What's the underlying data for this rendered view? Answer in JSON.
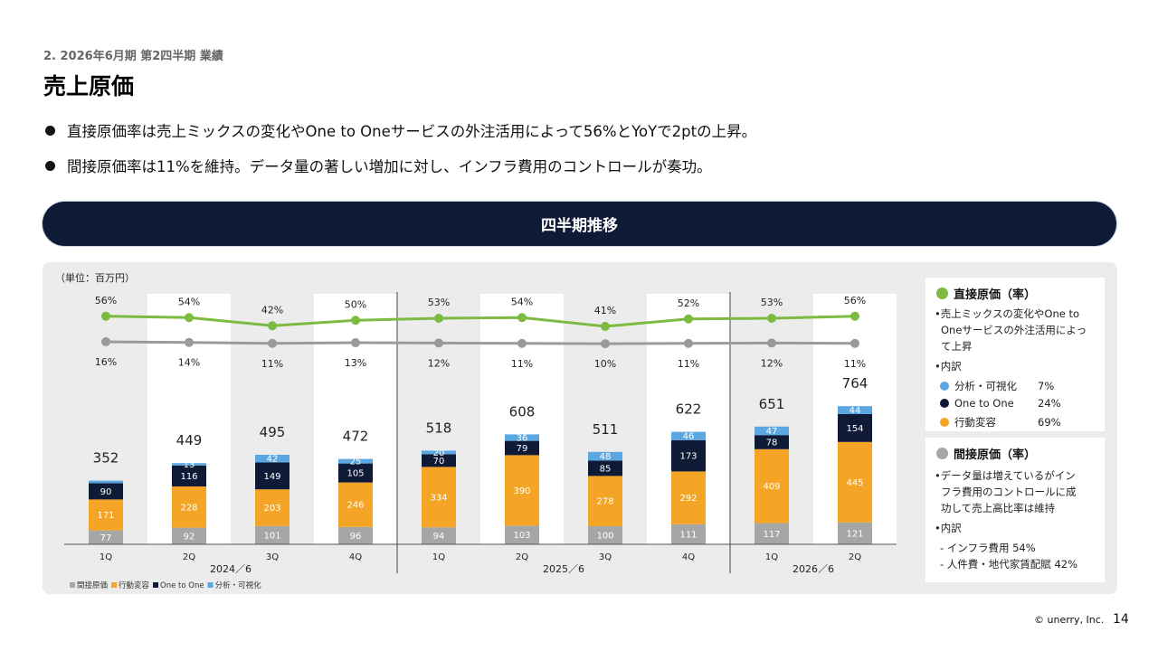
{
  "header": {
    "subtitle": "2. 2026年6月期 第2四半期 業績",
    "title": "売上原価"
  },
  "bullets": [
    "直接原価率は売上ミックスの変化やOne to Oneサービスの外注活用によって56%とYoYで2ptの上昇。",
    "間接原価率は11%を維持。データ量の著しい増加に対し、インフラ費用のコントロールが奏功。"
  ],
  "banner": "四半期推移",
  "unit_label": "（単位：百万円）",
  "colors": {
    "indirect": "#a6a6a6",
    "behavior": "#f4a526",
    "one_to_one": "#0f1a36",
    "analytics": "#5ba7e2",
    "direct_line": "#7cba41",
    "indirect_line": "#9a9a9a"
  },
  "chart_data": {
    "type": "bar",
    "stacked": true,
    "categories": [
      "1Q",
      "2Q",
      "3Q",
      "4Q",
      "1Q",
      "2Q",
      "3Q",
      "4Q",
      "1Q",
      "2Q"
    ],
    "groups": [
      {
        "label": "2024／6",
        "count": 4
      },
      {
        "label": "2025／6",
        "count": 4
      },
      {
        "label": "2026／6",
        "count": 2
      }
    ],
    "series": [
      {
        "key": "indirect",
        "name": "間接原価",
        "values": [
          77,
          92,
          101,
          96,
          94,
          103,
          100,
          111,
          117,
          121
        ],
        "labels": [
          "77",
          "92",
          "101",
          "96",
          "94",
          "103",
          "100",
          "111",
          "117",
          "121"
        ]
      },
      {
        "key": "behavior",
        "name": "行動変容",
        "values": [
          171,
          228,
          203,
          246,
          334,
          390,
          278,
          292,
          409,
          445
        ],
        "labels": [
          "171",
          "228",
          "203",
          "246",
          "334",
          "390",
          "278",
          "292",
          "409",
          "445"
        ]
      },
      {
        "key": "one_to_one",
        "name": "One to One",
        "values": [
          90,
          116,
          149,
          105,
          70,
          79,
          85,
          173,
          78,
          154
        ],
        "labels": [
          "90",
          "116",
          "149",
          "105",
          "70",
          "79",
          "85",
          "173",
          "78",
          "154"
        ]
      },
      {
        "key": "analytics",
        "name": "分析・可視化",
        "values": [
          14,
          13,
          42,
          25,
          20,
          36,
          48,
          46,
          47,
          44
        ],
        "labels": [
          "",
          "13",
          "42",
          "25",
          "20",
          "36",
          "48",
          "46",
          "47",
          "44"
        ]
      }
    ],
    "totals": [
      "352",
      "449",
      "495",
      "472",
      "518",
      "608",
      "511",
      "622",
      "651",
      "764"
    ],
    "lines": [
      {
        "key": "direct_line",
        "name": "直接原価率",
        "values": [
          56,
          54,
          42,
          50,
          53,
          54,
          41,
          52,
          53,
          56
        ],
        "labels": [
          "56%",
          "54%",
          "42%",
          "50%",
          "53%",
          "54%",
          "41%",
          "52%",
          "53%",
          "56%"
        ]
      },
      {
        "key": "indirect_line",
        "name": "間接原価率",
        "values": [
          16,
          14,
          11,
          13,
          12,
          11,
          10,
          11,
          12,
          11
        ],
        "labels": [
          "16%",
          "14%",
          "11%",
          "13%",
          "12%",
          "11%",
          "10%",
          "11%",
          "12%",
          "11%"
        ]
      }
    ],
    "ylim": [
      0,
      800
    ]
  },
  "side": {
    "card1": {
      "title": "直接原価（率）",
      "desc_lines": [
        "•売上ミックスの変化やOne to",
        "Oneサービスの外注活用によっ",
        "て上昇"
      ],
      "breakdown_label": "•内訳",
      "items": [
        {
          "label": "分析・可視化",
          "pct": "7%",
          "color": "#5ba7e2"
        },
        {
          "label": "One to One",
          "pct": "24%",
          "color": "#0f1a36"
        },
        {
          "label": "行動変容",
          "pct": "69%",
          "color": "#f4a526"
        }
      ]
    },
    "card2": {
      "title": "間接原価（率）",
      "desc_lines": [
        "•データ量は増えているがイン",
        "フラ費用のコントロールに成",
        "功して売上高比率は維持"
      ],
      "breakdown_label": "•内訳",
      "items": [
        "- インフラ費用 54%",
        "- 人件費・地代家賃配賦 42%"
      ]
    }
  },
  "footer": {
    "copyright": "© unerry, Inc.",
    "page": "14"
  }
}
